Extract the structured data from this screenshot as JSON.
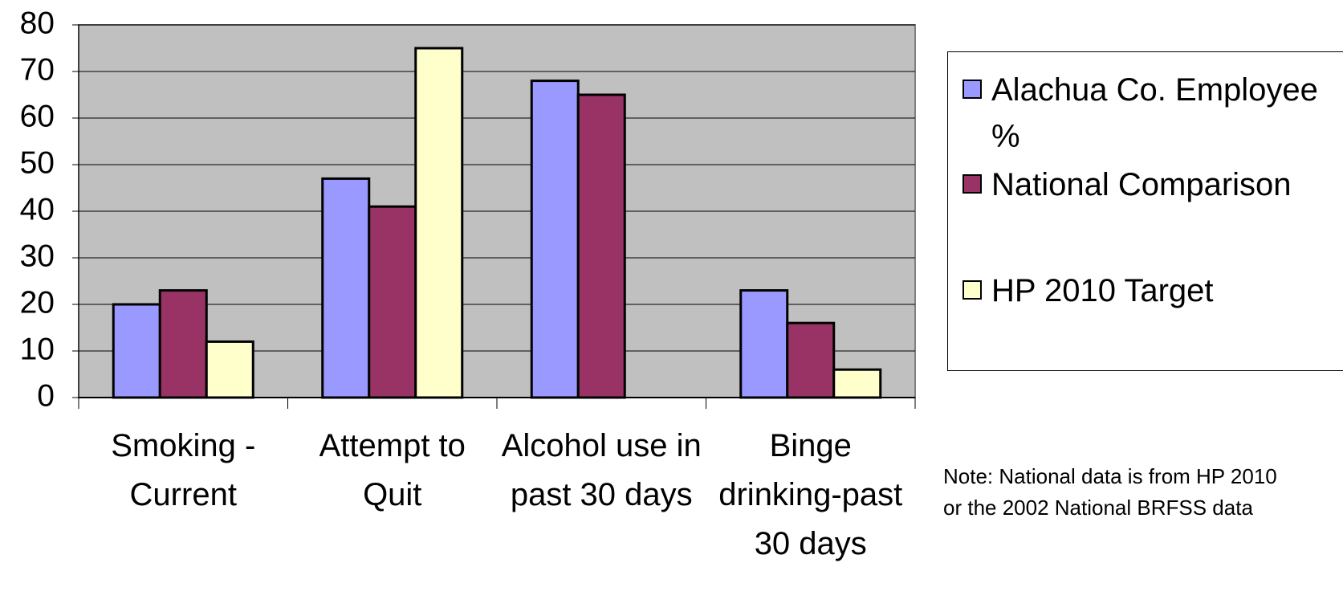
{
  "chart_data": {
    "type": "bar",
    "categories": [
      "Smoking - Current",
      "Attempt to Quit",
      "Alcohol use in past 30 days",
      "Binge drinking-past 30 days"
    ],
    "series": [
      {
        "name": "Alachua Co. Employee %",
        "color": "#9999ff",
        "values": [
          20,
          47,
          68,
          23
        ]
      },
      {
        "name": "National Comparison",
        "color": "#993366",
        "values": [
          23,
          41,
          65,
          16
        ]
      },
      {
        "name": "HP 2010 Target",
        "color": "#ffffcc",
        "values": [
          12,
          75,
          null,
          6
        ]
      }
    ],
    "ylim": [
      0,
      80
    ],
    "yticks": [
      0,
      10,
      20,
      30,
      40,
      50,
      60,
      70,
      80
    ],
    "grid": true,
    "legend": "right",
    "annotations": [
      "Note: National data is from HP 2010 or the 2002 National BRFSS data"
    ]
  }
}
